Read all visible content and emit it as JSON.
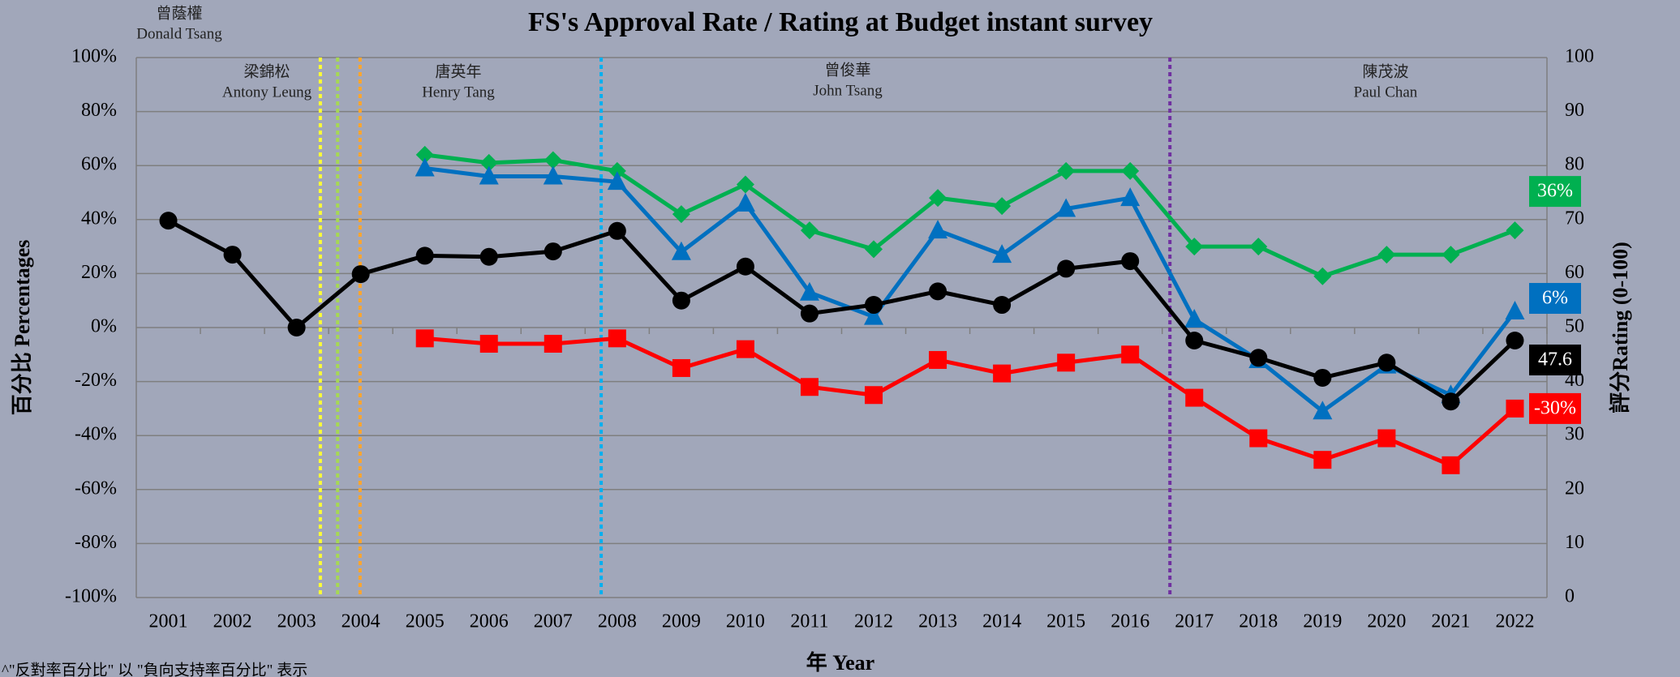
{
  "chart_data": {
    "type": "line",
    "title": "FS's Approval Rate / Rating at Budget instant survey",
    "xlabel": "年 Year",
    "ylabel": "百分比 Percentages",
    "y2label": "評分Rating (0-100)",
    "footnote": "^\"反對率百分比\" 以 \"負向支持率百分比\" 表示",
    "x": [
      2001,
      2002,
      2003,
      2004,
      2005,
      2006,
      2007,
      2008,
      2009,
      2010,
      2011,
      2012,
      2013,
      2014,
      2015,
      2016,
      2017,
      2018,
      2019,
      2020,
      2021,
      2022
    ],
    "xlim": [
      2000.5,
      2022.5
    ],
    "xticks": [
      2001,
      2002,
      2003,
      2004,
      2005,
      2006,
      2007,
      2008,
      2009,
      2010,
      2011,
      2012,
      2013,
      2014,
      2015,
      2016,
      2017,
      2018,
      2019,
      2020,
      2021,
      2022
    ],
    "ylim": [
      -100,
      100
    ],
    "yticks": [
      {
        "value": -100,
        "label": "-100%"
      },
      {
        "value": -80,
        "label": "-80%"
      },
      {
        "value": -60,
        "label": "-60%"
      },
      {
        "value": -40,
        "label": "-40%"
      },
      {
        "value": -20,
        "label": "-20%"
      },
      {
        "value": 0,
        "label": "0%"
      },
      {
        "value": 20,
        "label": "20%"
      },
      {
        "value": 40,
        "label": "40%"
      },
      {
        "value": 60,
        "label": "60%"
      },
      {
        "value": 80,
        "label": "80%"
      },
      {
        "value": 100,
        "label": "100%"
      }
    ],
    "y2lim": [
      0,
      100
    ],
    "y2ticks": [
      0,
      10,
      20,
      30,
      40,
      50,
      60,
      70,
      80,
      90,
      100
    ],
    "grid": true,
    "annotations": [
      {
        "zh": "曾蔭權",
        "en": "Donald Tsang"
      },
      {
        "zh": "梁錦松",
        "en": "Antony Leung"
      },
      {
        "zh": "唐英年",
        "en": "Henry Tang"
      },
      {
        "zh": "曾俊華",
        "en": "John Tsang"
      },
      {
        "zh": "陳茂波",
        "en": "Paul Chan"
      }
    ],
    "period_lines": [
      {
        "x": 2003.37,
        "color": "#ffff33"
      },
      {
        "x": 2003.64,
        "color": "#a6d854"
      },
      {
        "x": 2003.99,
        "color": "#ffa62b"
      },
      {
        "x": 2007.75,
        "color": "#00b0f0"
      },
      {
        "x": 2016.62,
        "color": "#7030a0"
      }
    ],
    "series": [
      {
        "color": "#00b050",
        "marker": "diamond",
        "end_label": "36%",
        "values": [
          null,
          null,
          null,
          null,
          64,
          61,
          62,
          58,
          42,
          53,
          36,
          29,
          48,
          45,
          58,
          58,
          30,
          30,
          19,
          27,
          27,
          36
        ]
      },
      {
        "color": "#0070c0",
        "marker": "triangle",
        "end_label": "6%",
        "values": [
          null,
          null,
          null,
          null,
          59,
          56,
          56,
          54,
          28,
          46,
          13,
          4,
          36,
          27,
          44,
          48,
          3,
          -12,
          -31,
          -14,
          -25,
          6
        ]
      },
      {
        "color": "#000000",
        "marker": "circle",
        "end_label": "47.6",
        "axis": "y2",
        "values": [
          69.8,
          63.5,
          50,
          59.9,
          63.3,
          63.1,
          64.1,
          67.9,
          55,
          61.3,
          52.6,
          54.2,
          56.7,
          54.2,
          60.9,
          62.3,
          47.6,
          44.4,
          40.7,
          43.5,
          36.3,
          47.6
        ]
      },
      {
        "color": "#ff0000",
        "marker": "square",
        "end_label": "-30%",
        "values": [
          null,
          null,
          null,
          null,
          -4,
          -6,
          -6,
          -4,
          -15,
          -8,
          -22,
          -25,
          -12,
          -17,
          -13,
          -10,
          -26,
          -41,
          -49,
          -41,
          -51,
          -30
        ]
      }
    ]
  }
}
